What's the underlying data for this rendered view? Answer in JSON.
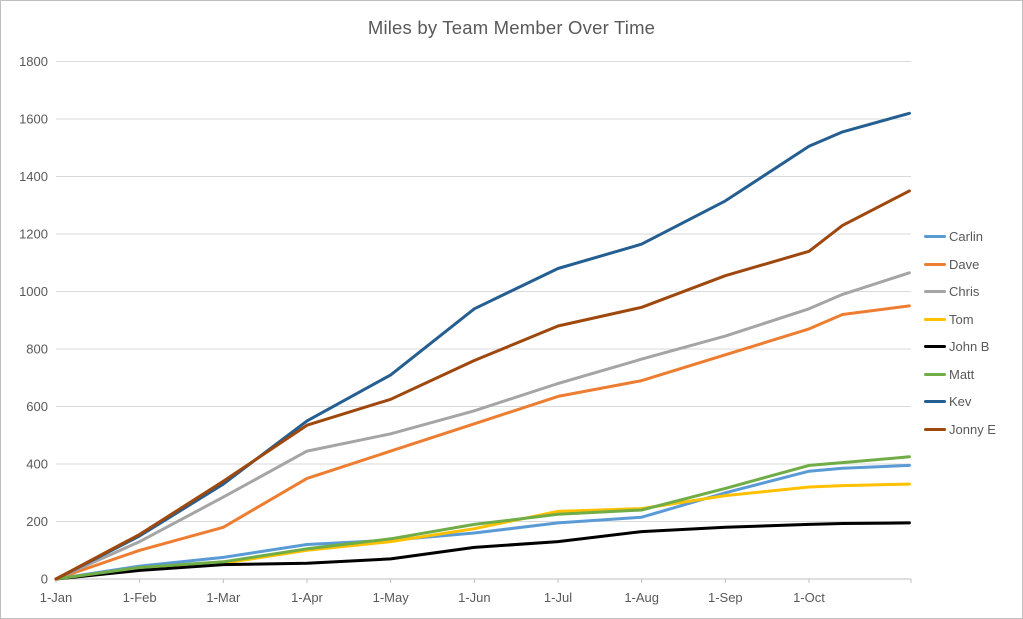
{
  "window": {
    "background": "#ffffff",
    "border_color": "#bfbfbf"
  },
  "styles": {
    "title_color": "#595959",
    "axis_text_color": "#595959",
    "gridline_color": "#d9d9d9",
    "axis_line_color": "#bfbfbf",
    "line_width": 3
  },
  "chart_data": {
    "type": "line",
    "title": "Miles by Team Member Over Time",
    "xlabel": "",
    "ylabel": "",
    "x_unit": "months since 1-Jan (fractional = partial month)",
    "x": [
      0,
      1,
      2,
      3,
      4,
      5,
      6,
      7,
      8,
      9,
      9.4,
      10.2
    ],
    "xtick_positions": [
      0,
      1,
      2,
      3,
      4,
      5,
      6,
      7,
      8,
      9
    ],
    "xtick_labels": [
      "1-Jan",
      "1-Feb",
      "1-Mar",
      "1-Apr",
      "1-May",
      "1-Jun",
      "1-Jul",
      "1-Aug",
      "1-Sep",
      "1-Oct"
    ],
    "ylim": [
      0,
      1800
    ],
    "ytick_step": 200,
    "ytick_labels": [
      "0",
      "200",
      "400",
      "600",
      "800",
      "1000",
      "1200",
      "1400",
      "1600",
      "1800"
    ],
    "grid": "horizontal",
    "legend_position": "right",
    "series": [
      {
        "name": "Carlin",
        "color": "#5B9BD5",
        "values": [
          0,
          45,
          75,
          120,
          135,
          160,
          195,
          215,
          300,
          375,
          385,
          395
        ]
      },
      {
        "name": "Dave",
        "color": "#ED7D31",
        "values": [
          0,
          100,
          180,
          350,
          445,
          540,
          635,
          690,
          780,
          870,
          920,
          950
        ]
      },
      {
        "name": "Chris",
        "color": "#A5A5A5",
        "values": [
          0,
          130,
          285,
          445,
          505,
          585,
          680,
          765,
          845,
          940,
          990,
          1065
        ]
      },
      {
        "name": "Tom",
        "color": "#FFC000",
        "values": [
          0,
          35,
          55,
          100,
          130,
          175,
          235,
          245,
          290,
          320,
          325,
          330
        ]
      },
      {
        "name": "John B",
        "color": "#000000",
        "values": [
          0,
          30,
          50,
          55,
          70,
          110,
          130,
          165,
          180,
          190,
          193,
          195
        ]
      },
      {
        "name": "Matt",
        "color": "#70AD47",
        "values": [
          0,
          40,
          60,
          105,
          140,
          190,
          225,
          240,
          315,
          395,
          405,
          425
        ]
      },
      {
        "name": "Kev",
        "color": "#255E91",
        "values": [
          0,
          150,
          330,
          550,
          710,
          940,
          1080,
          1165,
          1315,
          1505,
          1555,
          1620
        ]
      },
      {
        "name": "Jonny E",
        "color": "#9E480E",
        "values": [
          0,
          155,
          340,
          535,
          625,
          760,
          880,
          945,
          1055,
          1140,
          1230,
          1350
        ]
      }
    ]
  }
}
